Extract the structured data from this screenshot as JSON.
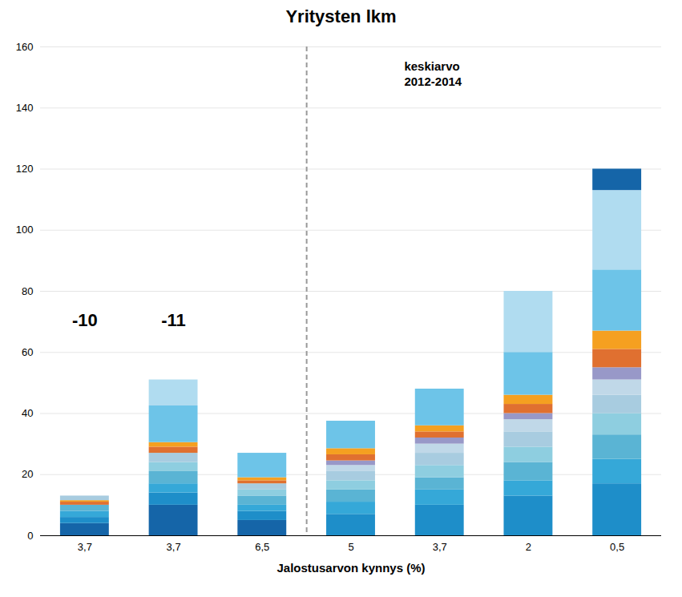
{
  "chart_data": {
    "type": "bar",
    "stacked": true,
    "title": "Yritysten lkm",
    "xlabel": "Jalostusarvon kynnys (%)",
    "categories": [
      "3,7",
      "3,7",
      "6,5",
      "5",
      "3,7",
      "2",
      "0,5"
    ],
    "ylim": [
      0,
      160
    ],
    "yticks": [
      0,
      20,
      40,
      60,
      80,
      100,
      120,
      140,
      160
    ],
    "grid": true,
    "stacks": [
      [
        {
          "value": 4,
          "color": "#1565a8"
        },
        {
          "value": 2,
          "color": "#1e8ec9"
        },
        {
          "value": 2,
          "color": "#35a8d8"
        },
        {
          "value": 2,
          "color": "#5ab4d4"
        },
        {
          "value": 1,
          "color": "#e07030"
        },
        {
          "value": 0.5,
          "color": "#f5a020"
        },
        {
          "value": 1.5,
          "color": "#a8cce0"
        }
      ],
      [
        {
          "value": 10,
          "color": "#1565a8"
        },
        {
          "value": 4,
          "color": "#1e8ec9"
        },
        {
          "value": 3,
          "color": "#35a8d8"
        },
        {
          "value": 4,
          "color": "#5ab4d4"
        },
        {
          "value": 3,
          "color": "#8ecee0"
        },
        {
          "value": 3,
          "color": "#a8cce0"
        },
        {
          "value": 2,
          "color": "#e07030"
        },
        {
          "value": 1.5,
          "color": "#f5a020"
        },
        {
          "value": 12,
          "color": "#6dc4e8"
        },
        {
          "value": 8.5,
          "color": "#b0dcf0"
        }
      ],
      [
        {
          "value": 5,
          "color": "#1565a8"
        },
        {
          "value": 3,
          "color": "#1e8ec9"
        },
        {
          "value": 2,
          "color": "#35a8d8"
        },
        {
          "value": 3,
          "color": "#5ab4d4"
        },
        {
          "value": 2,
          "color": "#8ecee0"
        },
        {
          "value": 2,
          "color": "#a8cce0"
        },
        {
          "value": 1,
          "color": "#e07030"
        },
        {
          "value": 1,
          "color": "#f5a020"
        },
        {
          "value": 8,
          "color": "#6dc4e8"
        }
      ],
      [
        {
          "value": 7,
          "color": "#1e8ec9"
        },
        {
          "value": 4,
          "color": "#35a8d8"
        },
        {
          "value": 4,
          "color": "#5ab4d4"
        },
        {
          "value": 3,
          "color": "#8ecee0"
        },
        {
          "value": 3,
          "color": "#a8cce0"
        },
        {
          "value": 2,
          "color": "#c0d8e8"
        },
        {
          "value": 1.5,
          "color": "#9898c8"
        },
        {
          "value": 2,
          "color": "#e07030"
        },
        {
          "value": 2,
          "color": "#f5a020"
        },
        {
          "value": 9,
          "color": "#6dc4e8"
        }
      ],
      [
        {
          "value": 10,
          "color": "#1e8ec9"
        },
        {
          "value": 5,
          "color": "#35a8d8"
        },
        {
          "value": 4,
          "color": "#5ab4d4"
        },
        {
          "value": 4,
          "color": "#8ecee0"
        },
        {
          "value": 4,
          "color": "#a8cce0"
        },
        {
          "value": 3,
          "color": "#c0d8e8"
        },
        {
          "value": 2,
          "color": "#9898c8"
        },
        {
          "value": 2,
          "color": "#e07030"
        },
        {
          "value": 2,
          "color": "#f5a020"
        },
        {
          "value": 12,
          "color": "#6dc4e8"
        }
      ],
      [
        {
          "value": 13,
          "color": "#1e8ec9"
        },
        {
          "value": 5,
          "color": "#35a8d8"
        },
        {
          "value": 6,
          "color": "#5ab4d4"
        },
        {
          "value": 5,
          "color": "#8ecee0"
        },
        {
          "value": 5,
          "color": "#a8cce0"
        },
        {
          "value": 4,
          "color": "#c0d8e8"
        },
        {
          "value": 2,
          "color": "#9898c8"
        },
        {
          "value": 3,
          "color": "#e07030"
        },
        {
          "value": 3,
          "color": "#f5a020"
        },
        {
          "value": 14,
          "color": "#6dc4e8"
        },
        {
          "value": 20,
          "color": "#b0dcf0"
        }
      ],
      [
        {
          "value": 17,
          "color": "#1e8ec9"
        },
        {
          "value": 8,
          "color": "#35a8d8"
        },
        {
          "value": 8,
          "color": "#5ab4d4"
        },
        {
          "value": 7,
          "color": "#8ecee0"
        },
        {
          "value": 6,
          "color": "#a8cce0"
        },
        {
          "value": 5,
          "color": "#c0d8e8"
        },
        {
          "value": 4,
          "color": "#9898c8"
        },
        {
          "value": 6,
          "color": "#e07030"
        },
        {
          "value": 6,
          "color": "#f5a020"
        },
        {
          "value": 20,
          "color": "#6dc4e8"
        },
        {
          "value": 26,
          "color": "#b0dcf0"
        },
        {
          "value": 7,
          "color": "#1565a8"
        }
      ]
    ],
    "reference_line": {
      "x": 2.5,
      "color": "#999999",
      "line_style": "dashed"
    },
    "annotations": [
      {
        "text": "-10",
        "x": 0,
        "y": 68
      },
      {
        "text": "-11",
        "x": 1,
        "y": 68
      },
      {
        "text": "keskiarvo\n2012-2014",
        "x": 3.6,
        "y": 156
      }
    ]
  }
}
